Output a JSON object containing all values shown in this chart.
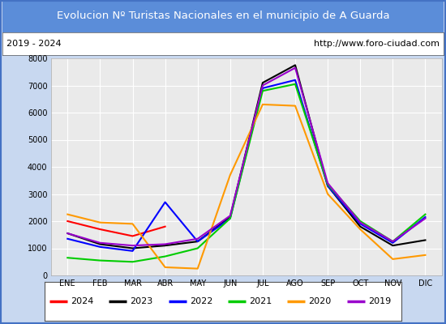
{
  "title": "Evolucion Nº Turistas Nacionales en el municipio de A Guarda",
  "subtitle_left": "2019 - 2024",
  "subtitle_right": "http://www.foro-ciudad.com",
  "months": [
    "ENE",
    "FEB",
    "MAR",
    "ABR",
    "MAY",
    "JUN",
    "JUL",
    "AGO",
    "SEP",
    "OCT",
    "NOV",
    "DIC"
  ],
  "ylim": [
    0,
    8000
  ],
  "yticks": [
    0,
    1000,
    2000,
    3000,
    4000,
    5000,
    6000,
    7000,
    8000
  ],
  "series": {
    "2024": {
      "color": "#ff0000",
      "linewidth": 1.5,
      "data": [
        2000,
        1700,
        1450,
        1800,
        null,
        null,
        null,
        null,
        null,
        null,
        null,
        null
      ]
    },
    "2023": {
      "color": "#000000",
      "linewidth": 1.5,
      "data": [
        1550,
        1150,
        1000,
        1100,
        1250,
        2150,
        7100,
        7750,
        3300,
        1800,
        1100,
        1300
      ]
    },
    "2022": {
      "color": "#0000ff",
      "linewidth": 1.5,
      "data": [
        1350,
        1050,
        900,
        2700,
        1250,
        2100,
        6900,
        7200,
        3300,
        1900,
        1200,
        2150
      ]
    },
    "2021": {
      "color": "#00cc00",
      "linewidth": 1.5,
      "data": [
        650,
        550,
        500,
        700,
        1000,
        2100,
        6800,
        7050,
        3350,
        2000,
        1250,
        2250
      ]
    },
    "2020": {
      "color": "#ff9900",
      "linewidth": 1.5,
      "data": [
        2250,
        1950,
        1900,
        300,
        250,
        3700,
        6300,
        6250,
        3000,
        1700,
        600,
        750
      ]
    },
    "2019": {
      "color": "#9900cc",
      "linewidth": 1.5,
      "data": [
        1550,
        1200,
        1100,
        1150,
        1350,
        2200,
        7000,
        7650,
        3400,
        1950,
        1250,
        2100
      ]
    }
  },
  "legend_order": [
    "2024",
    "2023",
    "2022",
    "2021",
    "2020",
    "2019"
  ],
  "title_bg_color": "#5b8dd9",
  "title_text_color": "#ffffff",
  "plot_bg_color": "#eaeaea",
  "outer_bg_color": "#c8d8f0",
  "border_color": "#4472c4",
  "grid_color": "#ffffff",
  "subtitle_bg_color": "#ffffff"
}
